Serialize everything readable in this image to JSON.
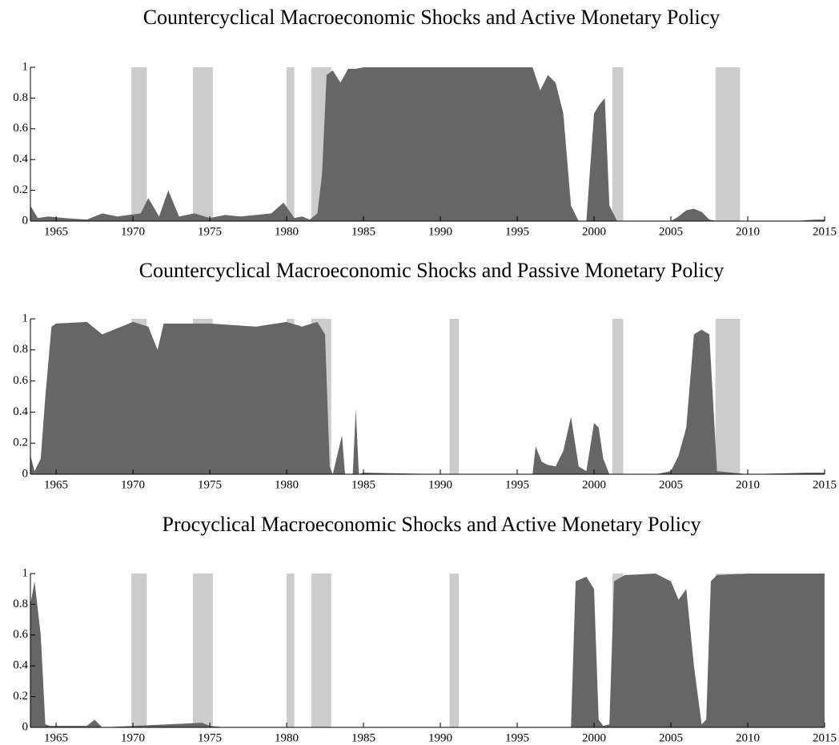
{
  "chart_data": [
    {
      "type": "area",
      "title": "Countercyclical Macroeconomic Shocks and Active Monetary Policy",
      "x": [
        1963.33,
        1963.8,
        1964.5,
        1965.5,
        1967,
        1968,
        1969,
        1970.5,
        1971,
        1971.7,
        1972.3,
        1973,
        1974,
        1975,
        1976,
        1977,
        1978,
        1979,
        1979.8,
        1980.5,
        1981,
        1981.5,
        1982,
        1982.3,
        1982.6,
        1983,
        1983.5,
        1984,
        1984.5,
        1985,
        1987,
        1990,
        1993,
        1995,
        1996,
        1996.5,
        1997,
        1997.5,
        1998,
        1998.5,
        1999,
        1999.5,
        2000,
        2000.3,
        2000.7,
        2001,
        2001.5,
        2002,
        2004,
        2005,
        2005.5,
        2006,
        2006.5,
        2007,
        2007.5,
        2008,
        2010,
        2013,
        2014.5,
        2015
      ],
      "values": [
        0.1,
        0.02,
        0.03,
        0.02,
        0.01,
        0.05,
        0.03,
        0.05,
        0.15,
        0.03,
        0.2,
        0.03,
        0.05,
        0.02,
        0.04,
        0.03,
        0.04,
        0.05,
        0.12,
        0.02,
        0.03,
        0.01,
        0.05,
        0.3,
        0.95,
        0.98,
        0.9,
        0.99,
        0.99,
        1,
        1,
        1,
        1,
        1,
        1,
        0.85,
        0.95,
        0.9,
        0.7,
        0.1,
        0,
        0,
        0.7,
        0.75,
        0.8,
        0.1,
        0,
        0,
        0,
        0,
        0.03,
        0.07,
        0.08,
        0.06,
        0.01,
        0,
        0,
        0,
        0.01,
        0.01
      ],
      "color": "#666666",
      "recession_color": "#cccccc",
      "recessions": [
        [
          1969.9,
          1970.9
        ],
        [
          1973.9,
          1975.2
        ],
        [
          1980.0,
          1980.5
        ],
        [
          1981.6,
          1982.9
        ],
        [
          1990.6,
          1991.2
        ],
        [
          2001.2,
          2001.9
        ],
        [
          2007.9,
          2009.5
        ]
      ],
      "xlim": [
        1963.33,
        2015
      ],
      "ylim": [
        0,
        1
      ],
      "xticks": [
        1965,
        1970,
        1975,
        1980,
        1985,
        1990,
        1995,
        2000,
        2005,
        2010,
        2015
      ],
      "yticks": [
        0,
        0.2,
        0.4,
        0.6,
        0.8,
        1
      ]
    },
    {
      "type": "area",
      "title": "Countercyclical Macroeconomic Shocks and Passive Monetary Policy",
      "x": [
        1963.33,
        1963.6,
        1964,
        1964.3,
        1964.7,
        1965,
        1967,
        1968,
        1970,
        1971,
        1971.6,
        1972,
        1975,
        1978,
        1980,
        1981,
        1982,
        1982.5,
        1982.8,
        1983,
        1983.6,
        1983.8,
        1984.3,
        1984.5,
        1984.7,
        1985,
        1990,
        1995,
        1996,
        1996.2,
        1996.6,
        1997,
        1997.5,
        1998,
        1998.5,
        1999,
        1999.5,
        2000,
        2000.3,
        2000.6,
        2001,
        2002,
        2004,
        2005,
        2005.5,
        2006,
        2006.5,
        2007,
        2007.5,
        2008,
        2010,
        2014,
        2015
      ],
      "values": [
        0.12,
        0.02,
        0.1,
        0.5,
        0.95,
        0.97,
        0.98,
        0.9,
        0.98,
        0.95,
        0.8,
        0.97,
        0.97,
        0.95,
        0.98,
        0.95,
        0.98,
        0.9,
        0.05,
        0,
        0.25,
        0,
        0,
        0.42,
        0,
        0.01,
        0,
        0,
        0,
        0.18,
        0.08,
        0.06,
        0.05,
        0.15,
        0.37,
        0.05,
        0.02,
        0.33,
        0.3,
        0.1,
        0,
        0,
        0,
        0.02,
        0.12,
        0.3,
        0.9,
        0.93,
        0.9,
        0.02,
        0,
        0.01,
        0.01
      ],
      "color": "#666666",
      "recession_color": "#cccccc",
      "recessions": [
        [
          1969.9,
          1970.9
        ],
        [
          1973.9,
          1975.2
        ],
        [
          1980.0,
          1980.5
        ],
        [
          1981.6,
          1982.9
        ],
        [
          1990.6,
          1991.2
        ],
        [
          2001.2,
          2001.9
        ],
        [
          2007.9,
          2009.5
        ]
      ],
      "xlim": [
        1963.33,
        2015
      ],
      "ylim": [
        0,
        1
      ],
      "xticks": [
        1965,
        1970,
        1975,
        1980,
        1985,
        1990,
        1995,
        2000,
        2005,
        2010,
        2015
      ],
      "yticks": [
        0,
        0.2,
        0.4,
        0.6,
        0.8,
        1
      ]
    },
    {
      "type": "area",
      "title": "Procyclical Macroeconomic Shocks and Active Monetary Policy",
      "x": [
        1963.33,
        1963.6,
        1964,
        1964.3,
        1964.6,
        1965,
        1967,
        1967.5,
        1968,
        1974.5,
        1975,
        1976,
        1990,
        1998.5,
        1998.8,
        1999.5,
        2000,
        2000.3,
        2000.6,
        2001,
        2001.3,
        2002,
        2004,
        2005,
        2005.5,
        2006,
        2006.5,
        2007,
        2007.3,
        2007.6,
        2008,
        2010,
        2015
      ],
      "values": [
        0.8,
        0.95,
        0.6,
        0.02,
        0.01,
        0.01,
        0.01,
        0.05,
        0,
        0.03,
        0.01,
        0,
        0,
        0,
        0.95,
        0.98,
        0.9,
        0.05,
        0.01,
        0.02,
        0.95,
        0.99,
        1,
        0.95,
        0.83,
        0.9,
        0.4,
        0.02,
        0.05,
        0.95,
        0.99,
        1,
        1
      ],
      "color": "#666666",
      "recession_color": "#cccccc",
      "recessions": [
        [
          1969.9,
          1970.9
        ],
        [
          1973.9,
          1975.2
        ],
        [
          1980.0,
          1980.5
        ],
        [
          1981.6,
          1982.9
        ],
        [
          1990.6,
          1991.2
        ],
        [
          2001.2,
          2001.9
        ],
        [
          2007.9,
          2009.5
        ]
      ],
      "xlim": [
        1963.33,
        2015
      ],
      "ylim": [
        0,
        1
      ],
      "xticks": [
        1965,
        1970,
        1975,
        1980,
        1985,
        1990,
        1995,
        2000,
        2005,
        2010,
        2015
      ],
      "yticks": [
        0,
        0.2,
        0.4,
        0.6,
        0.8,
        1
      ]
    }
  ]
}
